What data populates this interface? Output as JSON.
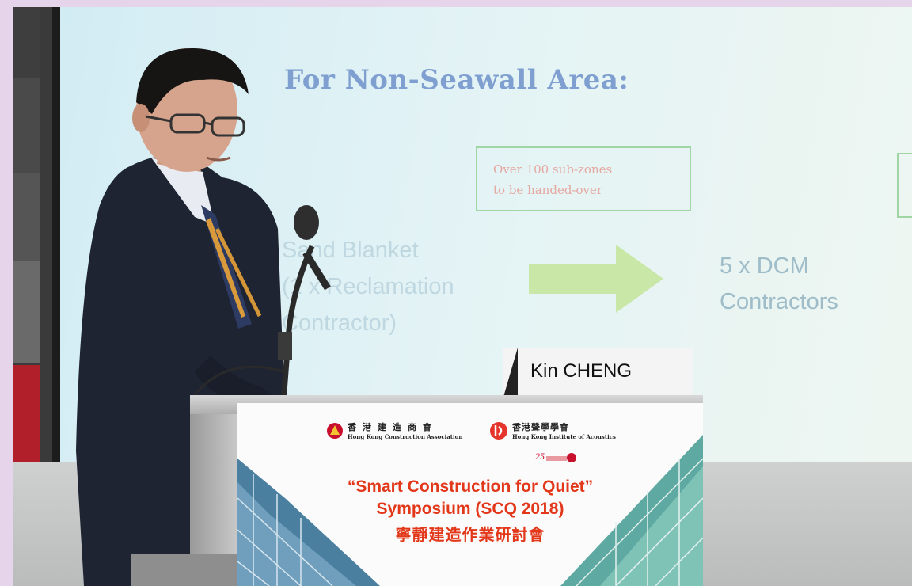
{
  "slide": {
    "title": "For Non-Seawall Area:",
    "callout_line1": "Over 100 sub-zones",
    "callout_line2": "to be handed-over",
    "left_line1": "Sand Blanket",
    "left_line2": "(1 x Reclamation",
    "left_line3": "Contractor)",
    "right_line1": "5 x DCM",
    "right_line2": "Contractors"
  },
  "name_plate": {
    "name": "Kin CHENG"
  },
  "banner": {
    "logo1_cn": "香港建造商會",
    "logo1_en": "Hong Kong Construction Association",
    "logo2_cn": "香港聲學學會",
    "logo2_en": "Hong Kong Institute of Acoustics",
    "anniversary": "25",
    "line1": "“Smart Construction for Quiet”",
    "line2": "Symposium (SCQ 2018)",
    "line3": "寧靜建造作業研討會"
  },
  "colors": {
    "banner_text": "#e3371a",
    "slide_title": "#7e9fd0",
    "arrow": "#c9e8a8",
    "callout_border": "#9fd6a4",
    "callout_text": "#e6a8a2"
  }
}
